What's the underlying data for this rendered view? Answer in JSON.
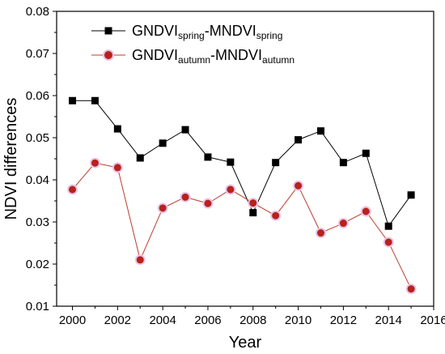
{
  "chart_data": {
    "type": "line",
    "xlabel": "Year",
    "ylabel": "NDVI differences",
    "xlim": [
      1999.3,
      2016
    ],
    "ylim": [
      0.01,
      0.08
    ],
    "x_ticks": [
      "2000",
      "2002",
      "2004",
      "2006",
      "2008",
      "2010",
      "2012",
      "2014",
      "2016"
    ],
    "y_ticks": [
      "0.01",
      "0.02",
      "0.03",
      "0.04",
      "0.05",
      "0.06",
      "0.07",
      "0.08"
    ],
    "x": [
      2000,
      2001,
      2002,
      2003,
      2004,
      2005,
      2006,
      2007,
      2008,
      2009,
      2010,
      2011,
      2012,
      2013,
      2014,
      2015
    ],
    "legend_position": "top-right",
    "series": [
      {
        "name_main": "GNDVI",
        "name_sub1": "spring",
        "name_mid": "-MNDVI",
        "name_sub2": "spring",
        "color": "#000000",
        "marker": "square",
        "values": [
          0.0588,
          0.0588,
          0.0521,
          0.0452,
          0.0487,
          0.0519,
          0.0454,
          0.0442,
          0.0322,
          0.0441,
          0.0495,
          0.0516,
          0.0441,
          0.0463,
          0.029,
          0.0364
        ]
      },
      {
        "name_main": "GNDVI",
        "name_sub1": "autumn",
        "name_mid": "-MNDVI",
        "name_sub2": "autumn",
        "color": "#c0392b",
        "marker": "circle",
        "values": [
          0.0377,
          0.044,
          0.0429,
          0.021,
          0.0333,
          0.0359,
          0.0344,
          0.0377,
          0.0345,
          0.0315,
          0.0386,
          0.0274,
          0.0297,
          0.0325,
          0.0252,
          0.0141
        ]
      }
    ]
  }
}
